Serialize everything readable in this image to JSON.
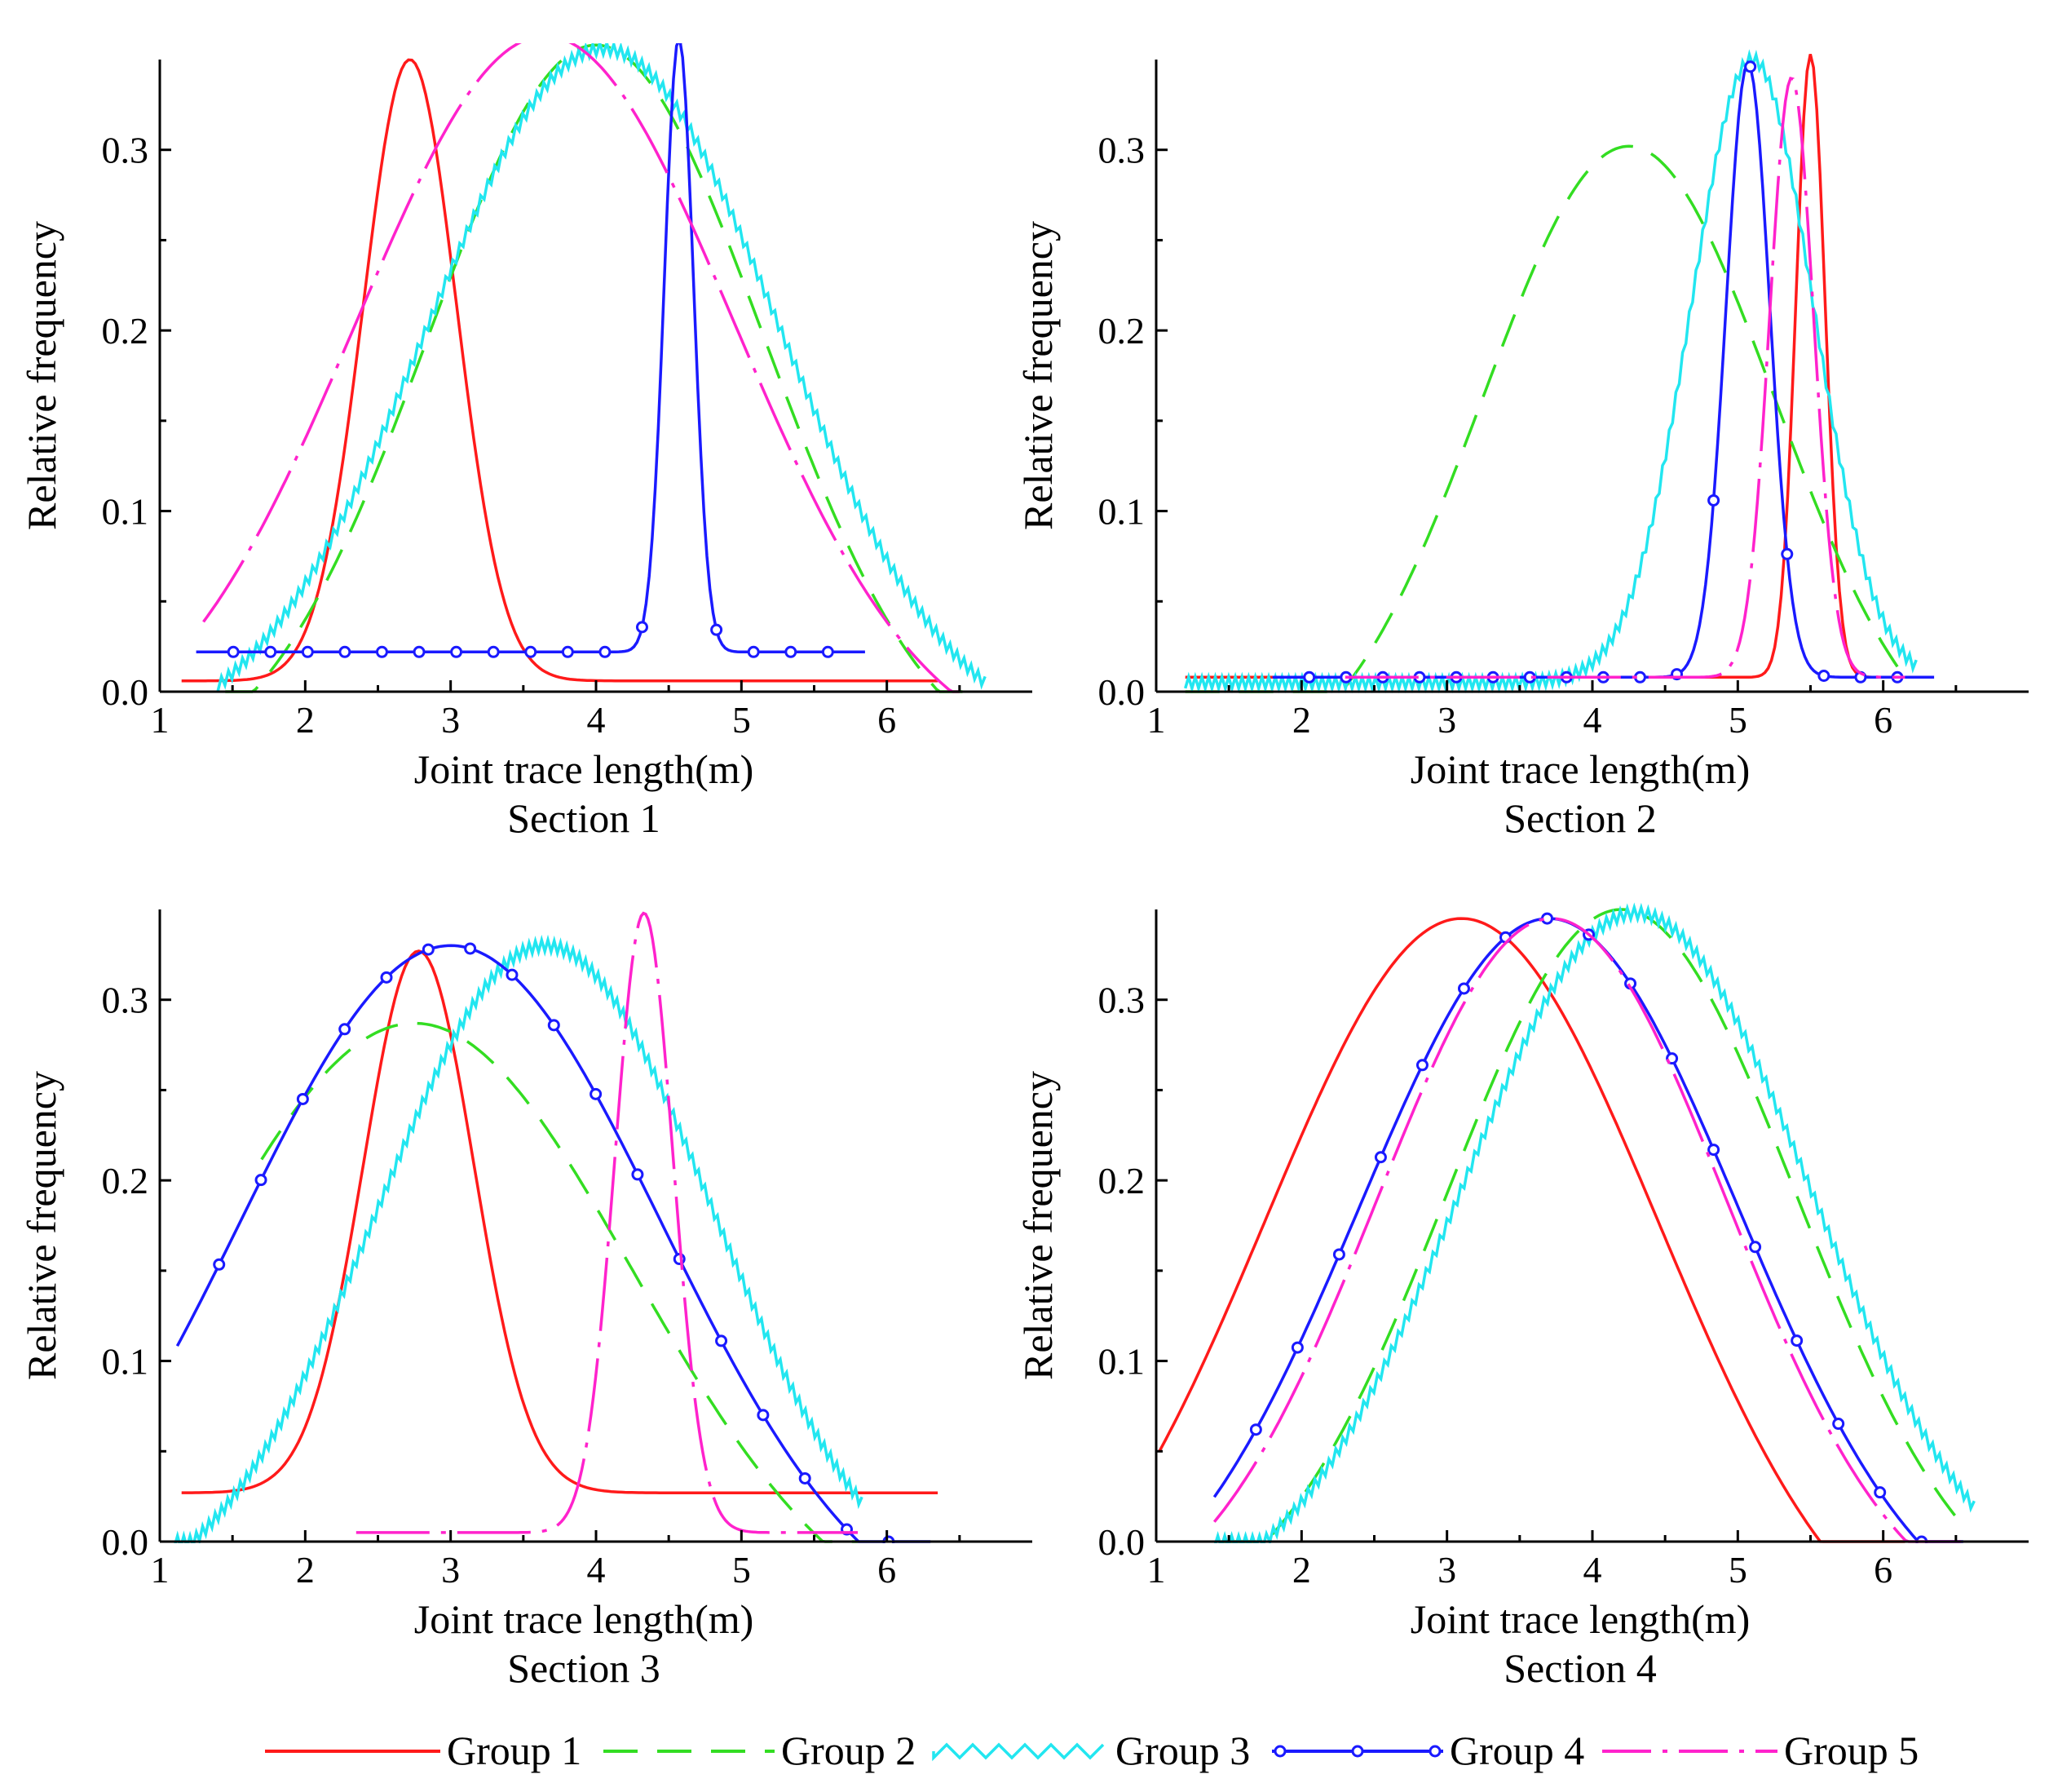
{
  "figure": {
    "colors": {
      "Group 1": "#ff1a1a",
      "Group 2": "#33dd22",
      "Group 3": "#22e6f0",
      "Group 4": "#1a1aff",
      "Group 5": "#ff22cc"
    },
    "legend": [
      "Group 1",
      "Group 2",
      "Group 3",
      "Group 4",
      "Group 5"
    ]
  },
  "chart_data": [
    {
      "type": "line",
      "title": "Section 1",
      "xlabel": "Joint trace length(m)",
      "ylabel": "Relative frequency",
      "xlim": [
        1,
        7
      ],
      "ylim": [
        0,
        0.35
      ],
      "xticks": [
        1,
        2,
        3,
        4,
        5,
        6
      ],
      "yticks": [
        0.0,
        0.1,
        0.2,
        0.3
      ],
      "series": [
        {
          "name": "Group 1",
          "x": [
            1.15,
            6.35
          ],
          "mu": 2.72,
          "sigma": 0.32,
          "base": 0.006,
          "amp": 0.344,
          "edge": "peak"
        },
        {
          "name": "Group 2",
          "x": [
            1.45,
            6.55
          ],
          "mu": 4.0,
          "sigma": 1.15,
          "base": -0.05,
          "amp": 0.408,
          "edge": "peak"
        },
        {
          "name": "Group 3",
          "x": [
            1.4,
            6.7
          ],
          "mu": 4.05,
          "sigma": 1.2,
          "base": -0.03,
          "amp": 0.386,
          "edge": "peak"
        },
        {
          "name": "Group 4",
          "x": [
            1.25,
            5.85
          ],
          "mu": 4.57,
          "sigma": 0.1,
          "base": 0.022,
          "amp": 0.34,
          "edge": "peak"
        },
        {
          "name": "Group 5",
          "x": [
            1.3,
            6.5
          ],
          "mu": 3.65,
          "sigma": 1.3,
          "base": -0.04,
          "amp": 0.403,
          "edge": "peak"
        }
      ]
    },
    {
      "type": "line",
      "title": "Section 2",
      "xlabel": "Joint trace length(m)",
      "ylabel": "Relative frequency",
      "xlim": [
        1,
        7
      ],
      "ylim": [
        0,
        0.35
      ],
      "xticks": [
        1,
        2,
        3,
        4,
        5,
        6
      ],
      "yticks": [
        0.0,
        0.1,
        0.2,
        0.3
      ],
      "series": [
        {
          "name": "Group 1",
          "x": [
            1.2,
            6.1
          ],
          "mu": 5.5,
          "sigma": 0.1,
          "base": 0.008,
          "amp": 0.345,
          "edge": "peak"
        },
        {
          "name": "Group 2",
          "x": [
            1.2,
            6.1
          ],
          "mu": 4.25,
          "sigma": 1.0,
          "base": -0.05,
          "amp": 0.352,
          "edge": "peak"
        },
        {
          "name": "Group 3",
          "x": [
            1.2,
            6.25
          ],
          "mu": 5.1,
          "sigma": 0.42,
          "base": 0.005,
          "amp": 0.345,
          "edge": "peak"
        },
        {
          "name": "Group 4",
          "x": [
            1.8,
            6.35
          ],
          "mu": 5.07,
          "sigma": 0.15,
          "base": 0.008,
          "amp": 0.34,
          "edge": "peak"
        },
        {
          "name": "Group 5",
          "x": [
            2.3,
            6.15
          ],
          "mu": 5.37,
          "sigma": 0.15,
          "base": 0.008,
          "amp": 0.332,
          "edge": "peak"
        }
      ]
    },
    {
      "type": "line",
      "title": "Section 3",
      "xlabel": "Joint trace length(m)",
      "ylabel": "Relative frequency",
      "xlim": [
        1,
        7
      ],
      "ylim": [
        0,
        0.35
      ],
      "xticks": [
        1,
        2,
        3,
        4,
        5,
        6
      ],
      "yticks": [
        0.0,
        0.1,
        0.2,
        0.3
      ],
      "series": [
        {
          "name": "Group 1",
          "x": [
            1.15,
            6.35
          ],
          "mu": 2.78,
          "sigma": 0.38,
          "base": 0.027,
          "amp": 0.3,
          "edge": "peak"
        },
        {
          "name": "Group 2",
          "x": [
            1.7,
            5.8
          ],
          "mu": 2.75,
          "sigma": 1.5,
          "base": -0.06,
          "amp": 0.347,
          "edge": "peak"
        },
        {
          "name": "Group 3",
          "x": [
            1.1,
            5.85
          ],
          "mu": 3.65,
          "sigma": 1.15,
          "base": -0.04,
          "amp": 0.37,
          "edge": "peak"
        },
        {
          "name": "Group 4",
          "x": [
            1.12,
            6.3
          ],
          "mu": 3.0,
          "sigma": 1.45,
          "base": -0.06,
          "amp": 0.39,
          "edge": "peak"
        },
        {
          "name": "Group 5",
          "x": [
            2.35,
            5.8
          ],
          "mu": 4.33,
          "sigma": 0.2,
          "base": 0.005,
          "amp": 0.343,
          "edge": "peak"
        }
      ]
    },
    {
      "type": "line",
      "title": "Section 4",
      "xlabel": "Joint trace length(m)",
      "ylabel": "Relative frequency",
      "xlim": [
        1,
        7
      ],
      "ylim": [
        0,
        0.35
      ],
      "xticks": [
        1,
        2,
        3,
        4,
        5,
        6
      ],
      "yticks": [
        0.0,
        0.1,
        0.2,
        0.3
      ],
      "series": [
        {
          "name": "Group 1",
          "x": [
            1.02,
            6.15
          ],
          "mu": 3.1,
          "sigma": 1.35,
          "base": -0.08,
          "amp": 0.425,
          "edge": "peak"
        },
        {
          "name": "Group 2",
          "x": [
            1.45,
            6.55
          ],
          "mu": 4.2,
          "sigma": 1.2,
          "base": -0.05,
          "amp": 0.4,
          "edge": "peak"
        },
        {
          "name": "Group 3",
          "x": [
            1.4,
            6.65
          ],
          "mu": 4.3,
          "sigma": 1.2,
          "base": -0.04,
          "amp": 0.388,
          "edge": "peak"
        },
        {
          "name": "Group 4",
          "x": [
            1.4,
            6.55
          ],
          "mu": 3.7,
          "sigma": 1.3,
          "base": -0.06,
          "amp": 0.405,
          "edge": "peak"
        },
        {
          "name": "Group 5",
          "x": [
            1.4,
            6.55
          ],
          "mu": 3.72,
          "sigma": 1.2,
          "base": -0.05,
          "amp": 0.395,
          "edge": "peak"
        }
      ]
    }
  ]
}
